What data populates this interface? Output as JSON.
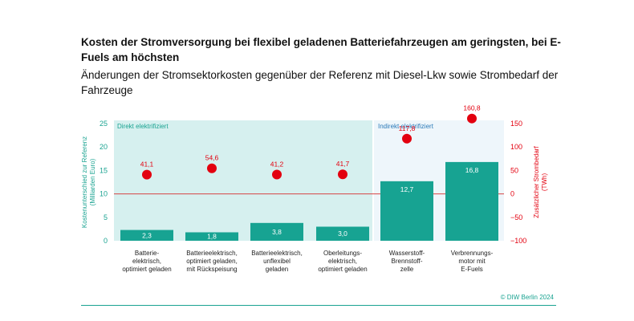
{
  "title": "Kosten der Stromversorgung bei flexibel geladenen Batteriefahrzeugen am geringsten, bei E-Fuels am höchsten",
  "subtitle": "Änderungen der Stromsektorkosten gegenüber der Referenz mit Diesel-Lkw sowie Strombedarf der Fahrzeuge",
  "copyright": "© DIW Berlin 2024",
  "colors": {
    "bar": "#17a392",
    "dot": "#e3000f",
    "refline": "#d64545",
    "panel_direct": "#d6f0ef",
    "panel_indirect": "#eef6fb",
    "left_axis": "#1aa391",
    "right_axis": "#e3000f",
    "panel_label": "#1aa391",
    "panel_label_indirect": "#2a7ab8"
  },
  "chart_data": {
    "type": "bar",
    "groups": [
      "Direkt elektrifiziert",
      "Indirekt elektrifiziert"
    ],
    "categories": [
      [
        "Batterie-",
        "elektrisch,",
        "optimiert geladen"
      ],
      [
        "Batterieelektrisch,",
        "optimiert geladen,",
        "mit Rückspeisung"
      ],
      [
        "Batterieelektrisch,",
        "unflexibel",
        "geladen"
      ],
      [
        "Oberleitungs-",
        "elektrisch,",
        "optimiert geladen"
      ],
      [
        "Wasserstoff-",
        "Brennstoff-",
        "zelle"
      ],
      [
        "Verbrennungs-",
        "motor mit",
        "E-Fuels"
      ]
    ],
    "series": [
      {
        "values": [
          2.3,
          1.8,
          3.8,
          3.0,
          12.7,
          16.8
        ],
        "labels": [
          "2,3",
          "1,8",
          "3,8",
          "3,0",
          "12,7",
          "16,8"
        ]
      },
      {
        "values": [
          41.1,
          54.6,
          41.2,
          41.7,
          117.8,
          160.8
        ],
        "labels": [
          "41,1",
          "54,6",
          "41,2",
          "41,7",
          "117,8",
          "160,8"
        ]
      }
    ],
    "ylabel": "Kostenunterschied zur Referenz (Milliarden Euro)",
    "ylabel_lines": [
      "Kostenunterschied zur Referenz",
      "(Milliarden Euro)"
    ],
    "y2label": "Zusätzlicher Strombedarf (TWh)",
    "y2label_lines": [
      "Zusätzlicher Strombedarf",
      "(TWh)"
    ],
    "ylim": [
      0,
      25
    ],
    "y2lim": [
      -100,
      150
    ],
    "yticks": [
      "0",
      "5",
      "10",
      "15",
      "20",
      "25"
    ],
    "y2ticks": [
      "−100",
      "−50",
      "0",
      "50",
      "100",
      "150"
    ],
    "grid": false
  }
}
